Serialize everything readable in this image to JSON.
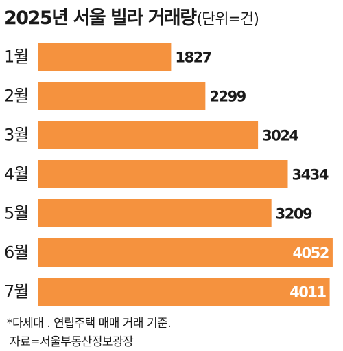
{
  "title": "2025년 서울 빌라 거래량",
  "unit": "(단위=건)",
  "bar_color": "#f5923e",
  "footnotes": [
    "*다세대 . 연립주택 매매 거래 기준.",
    "자료=서울부동산정보광장"
  ],
  "chart_data": {
    "type": "bar",
    "orientation": "horizontal",
    "title": "2025년 서울 빌라 거래량",
    "unit": "(단위=건)",
    "categories": [
      "1월",
      "2월",
      "3월",
      "4월",
      "5월",
      "6월",
      "7월"
    ],
    "values": [
      1827,
      2299,
      3024,
      3434,
      3209,
      4052,
      4011
    ],
    "value_labels": [
      "1827",
      "2299",
      "3024",
      "3434",
      "3209",
      "4052",
      "4011"
    ],
    "xlim": [
      0,
      4100
    ],
    "grid": false,
    "legend": "none"
  }
}
